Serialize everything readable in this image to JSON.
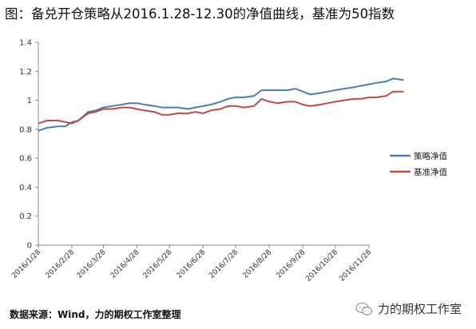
{
  "title": "图：备兑开仓策略从2016.1.28-12.30的净值曲线，基准为50指数",
  "source": "数据来源：Wind，力的期权工作室整理",
  "watermark": "力的期权工作室",
  "chart_data": {
    "type": "line",
    "ylim": [
      0,
      1.4
    ],
    "yticks": [
      0,
      0.2,
      0.4,
      0.6,
      0.8,
      1,
      1.2,
      1.4
    ],
    "grid": false,
    "legend_position": "right",
    "x_tick_labels": [
      "2016/1/28",
      "2016/2/28",
      "2016/3/28",
      "2016/4/28",
      "2016/5/28",
      "2016/6/28",
      "2016/7/28",
      "2016/8/28",
      "2016/9/28",
      "2016/10/28",
      "2016/11/28"
    ],
    "x": [
      "2016/1/28",
      "2016/2/5",
      "2016/2/15",
      "2016/2/22",
      "2016/2/28",
      "2016/3/5",
      "2016/3/14",
      "2016/3/21",
      "2016/3/28",
      "2016/4/5",
      "2016/4/14",
      "2016/4/21",
      "2016/4/28",
      "2016/5/5",
      "2016/5/14",
      "2016/5/21",
      "2016/5/28",
      "2016/6/5",
      "2016/6/14",
      "2016/6/21",
      "2016/6/28",
      "2016/7/5",
      "2016/7/14",
      "2016/7/21",
      "2016/7/28",
      "2016/8/5",
      "2016/8/14",
      "2016/8/21",
      "2016/8/28",
      "2016/9/5",
      "2016/9/14",
      "2016/9/21",
      "2016/9/28",
      "2016/10/5",
      "2016/10/14",
      "2016/10/21",
      "2016/10/28",
      "2016/11/5",
      "2016/11/14",
      "2016/11/21",
      "2016/11/28",
      "2016/12/5",
      "2016/12/14",
      "2016/12/20",
      "2016/12/30"
    ],
    "series": [
      {
        "name": "策略净值",
        "color": "#4a7ebb",
        "values": [
          0.79,
          0.81,
          0.82,
          0.82,
          0.85,
          0.86,
          0.92,
          0.93,
          0.95,
          0.96,
          0.97,
          0.98,
          0.98,
          0.97,
          0.96,
          0.95,
          0.95,
          0.95,
          0.94,
          0.95,
          0.96,
          0.97,
          0.99,
          1.01,
          1.02,
          1.02,
          1.03,
          1.07,
          1.07,
          1.07,
          1.07,
          1.08,
          1.06,
          1.04,
          1.05,
          1.06,
          1.07,
          1.08,
          1.09,
          1.1,
          1.11,
          1.12,
          1.13,
          1.15,
          1.14
        ]
      },
      {
        "name": "基准净值",
        "color": "#be4b48",
        "values": [
          0.84,
          0.86,
          0.86,
          0.85,
          0.84,
          0.86,
          0.91,
          0.92,
          0.94,
          0.94,
          0.95,
          0.95,
          0.94,
          0.93,
          0.92,
          0.9,
          0.9,
          0.91,
          0.91,
          0.92,
          0.91,
          0.93,
          0.94,
          0.96,
          0.96,
          0.95,
          0.96,
          1.01,
          0.99,
          0.98,
          0.99,
          0.99,
          0.97,
          0.96,
          0.97,
          0.98,
          0.99,
          1.0,
          1.01,
          1.01,
          1.02,
          1.02,
          1.03,
          1.06,
          1.06
        ]
      }
    ]
  }
}
